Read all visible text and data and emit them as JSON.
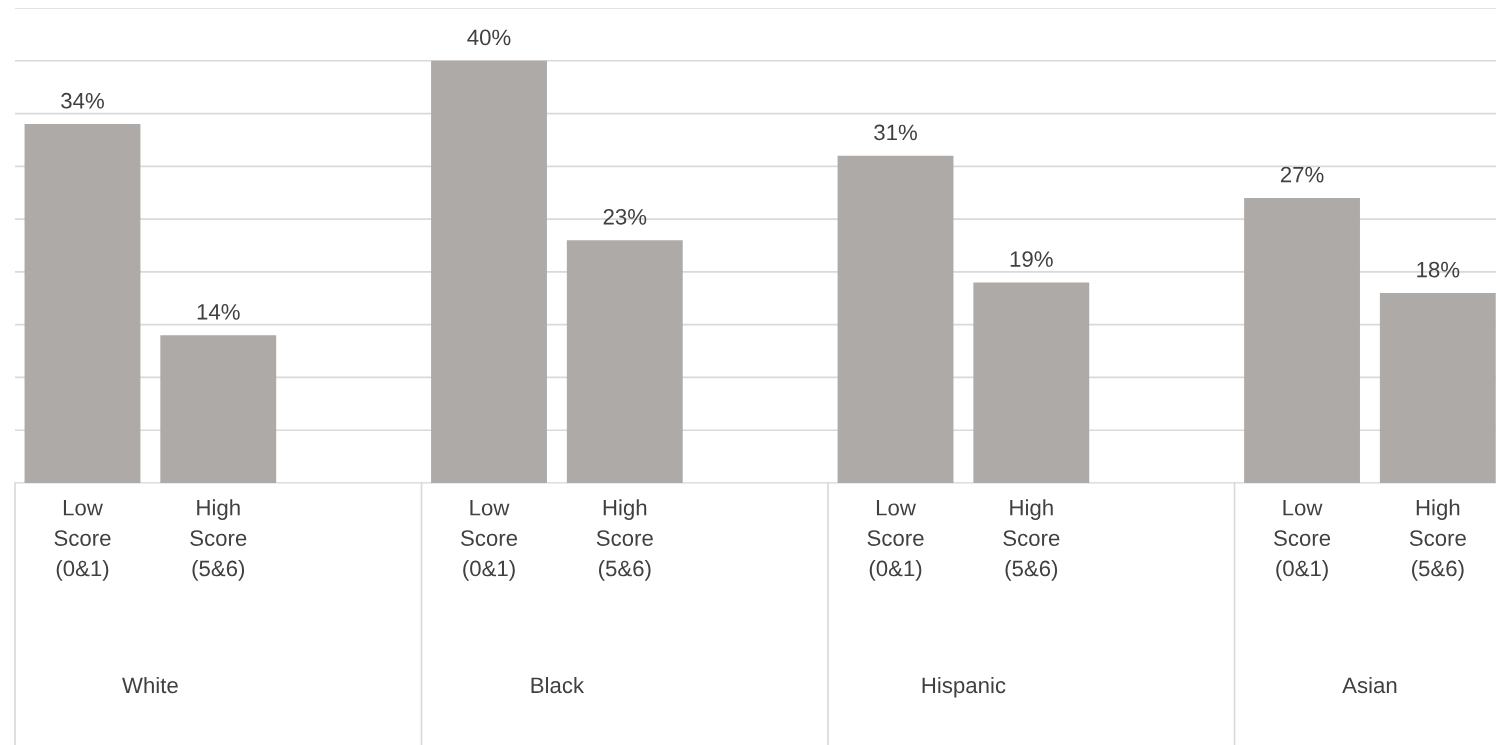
{
  "chart_data": {
    "type": "bar",
    "categories": [
      "White",
      "Black",
      "Hispanic",
      "Asian"
    ],
    "series": [
      {
        "name": "Low Score (0&1)",
        "color": "#aeaaa8",
        "values": [
          34,
          40,
          31,
          27
        ],
        "value_labels": [
          "34%",
          "40%",
          "31%",
          "27%"
        ]
      },
      {
        "name": "High Score (5&6)",
        "color": "#aeaaa8",
        "values": [
          14,
          23,
          19,
          18
        ],
        "value_labels": [
          "14%",
          "23%",
          "19%",
          "18%"
        ]
      }
    ],
    "grid": "y"
  }
}
